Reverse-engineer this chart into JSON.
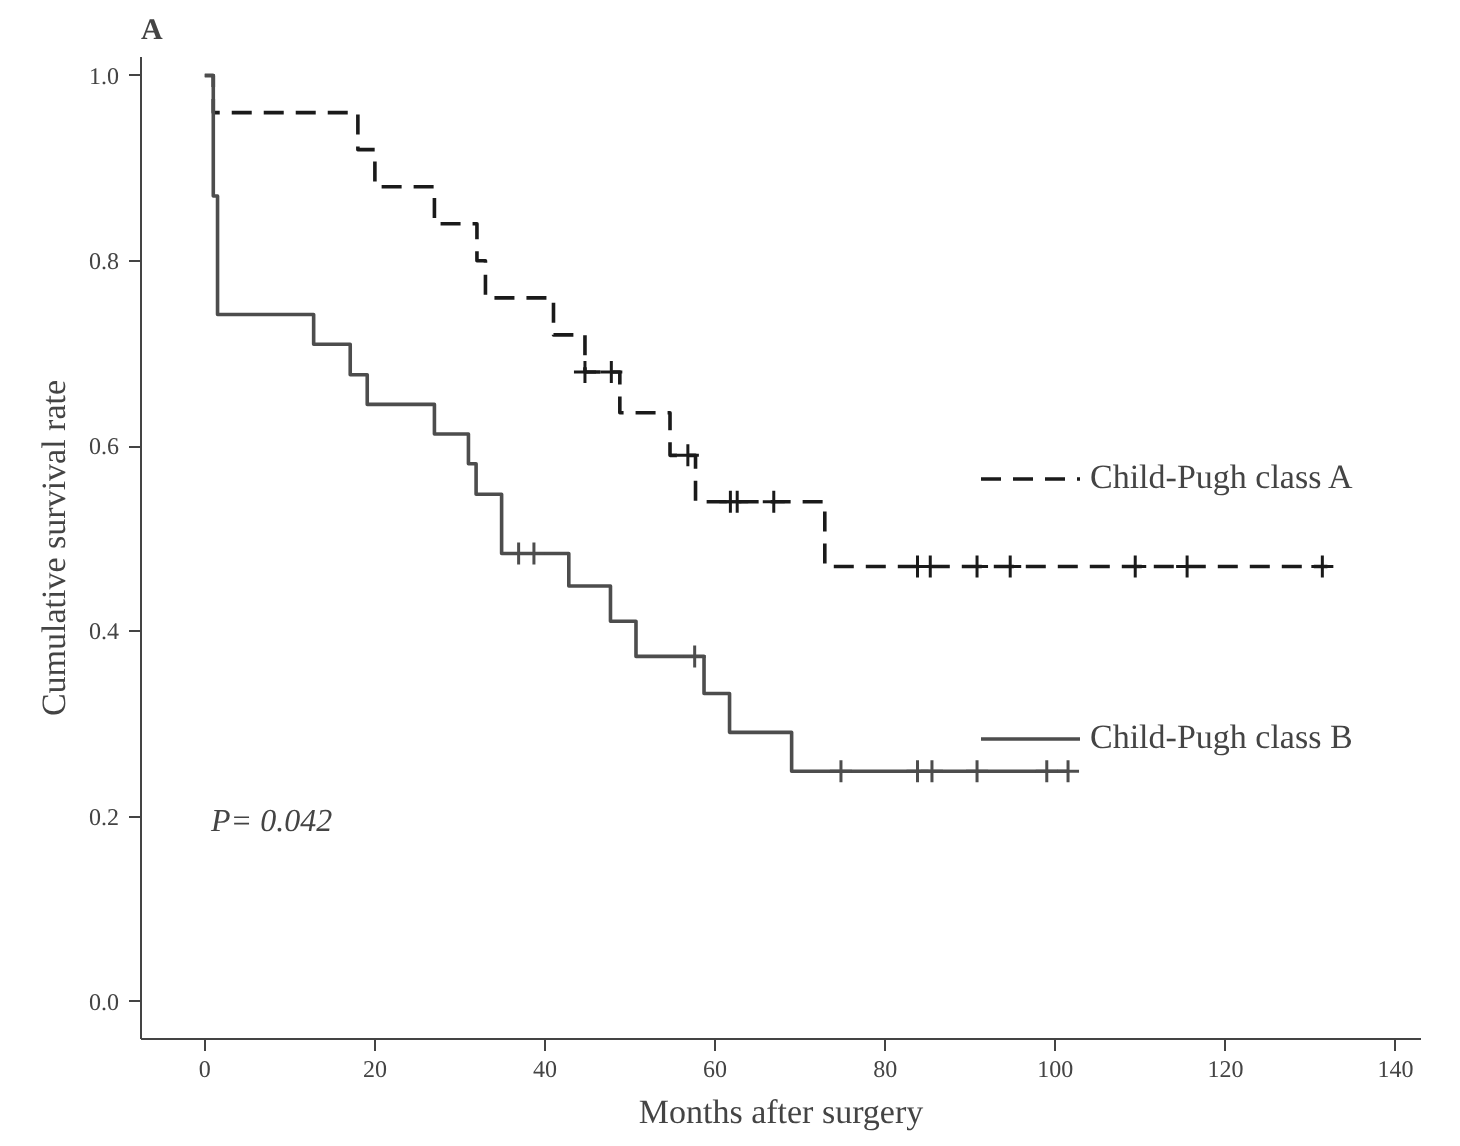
{
  "chart_data": {
    "type": "step",
    "title": "A",
    "xlabel": "Months after surgery",
    "ylabel": "Cumulative survival rate",
    "xlim": [
      -7.5,
      143
    ],
    "ylim": [
      -0.04,
      1.02
    ],
    "xticks": [
      0,
      20,
      40,
      60,
      80,
      100,
      120,
      140
    ],
    "yticks": [
      {
        "value": 0,
        "label": "0.0"
      },
      {
        "value": 0.2,
        "label": "0.2"
      },
      {
        "value": 0.4,
        "label": "0.4"
      },
      {
        "value": 0.6,
        "label": "0.6"
      },
      {
        "value": 0.8,
        "label": "0.8"
      },
      {
        "value": 1.0,
        "label": "1.0"
      }
    ],
    "grid": false,
    "legend": "right",
    "annotations": [
      "P= 0.042"
    ],
    "series": [
      {
        "name": "Child-Pugh class A",
        "line_style": "dashed",
        "color": "#1a1a1a",
        "x": [
          0,
          1,
          18,
          20,
          27,
          32,
          33,
          41,
          44.7,
          48.8,
          54.7,
          57.7,
          72.9,
          132
        ],
        "values": [
          1.0,
          0.96,
          0.92,
          0.88,
          0.84,
          0.8,
          0.76,
          0.72,
          0.68,
          0.636,
          0.59,
          0.54,
          0.47,
          0.47
        ]
      },
      {
        "name": "Child-Pugh class B",
        "line_style": "solid",
        "color": "#4d4d4d",
        "x": [
          0,
          1,
          1.5,
          12.8,
          17.1,
          19.1,
          27,
          31,
          31.9,
          34.9,
          42.8,
          47.7,
          50.7,
          58.7,
          61.7,
          69,
          101.5
        ],
        "values": [
          1.0,
          0.87,
          0.742,
          0.71,
          0.677,
          0.645,
          0.613,
          0.581,
          0.548,
          0.484,
          0.449,
          0.411,
          0.373,
          0.333,
          0.291,
          0.249,
          0.249
        ]
      },
      {
        "type": "scatter",
        "marker": "cross",
        "color": "#1a1a1a",
        "x": [
          44.7,
          47.8,
          56.8,
          61.8,
          62.6,
          66.9,
          83.8,
          85.3,
          90.8,
          94.7,
          109.4,
          115.5,
          131.4
        ],
        "values": [
          0.68,
          0.68,
          0.59,
          0.54,
          0.54,
          0.54,
          0.47,
          0.47,
          0.47,
          0.47,
          0.47,
          0.47,
          0.47
        ]
      },
      {
        "type": "scatter",
        "marker": "cross",
        "color": "#4d4d4d",
        "x": [
          36.9,
          38.7,
          57.6,
          74.8,
          83.8,
          85.5,
          90.8,
          99,
          101.5
        ],
        "values": [
          0.484,
          0.484,
          0.373,
          0.249,
          0.249,
          0.249,
          0.249,
          0.249,
          0.249
        ]
      }
    ]
  }
}
